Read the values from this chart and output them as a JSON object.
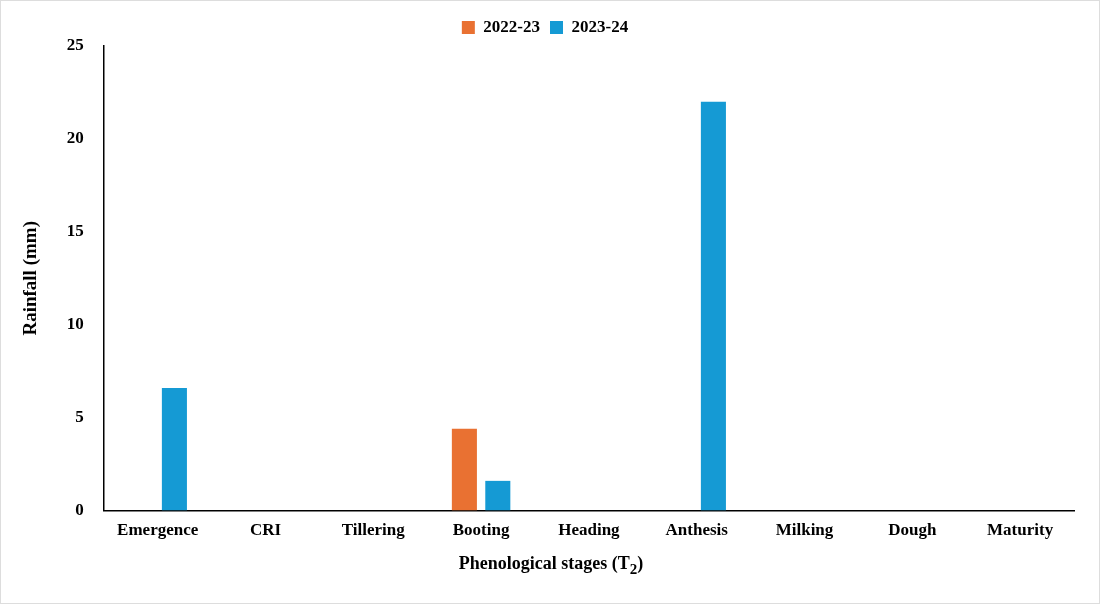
{
  "chart_data": {
    "type": "bar",
    "xlabel": "Phenological stages (T$_{2}$)",
    "ylabel": "Rainfall (mm)",
    "categories": [
      "Emergence",
      "CRI",
      "Tillering",
      "Booting",
      "Heading",
      "Anthesis",
      "Milking",
      "Dough",
      "Maturity"
    ],
    "series": [
      {
        "name": "2022-23",
        "color": "#e97132",
        "values": [
          0,
          0,
          0,
          4.4,
          0,
          0,
          0,
          0,
          0
        ]
      },
      {
        "name": "2023-24",
        "color": "#159ad4",
        "values": [
          6.6,
          0,
          0,
          1.6,
          0,
          22,
          0,
          0,
          0
        ]
      }
    ],
    "ylim": [
      0,
      25
    ],
    "yticks": [
      0,
      5,
      10,
      15,
      20,
      25
    ],
    "grid": false,
    "legend": "top"
  }
}
